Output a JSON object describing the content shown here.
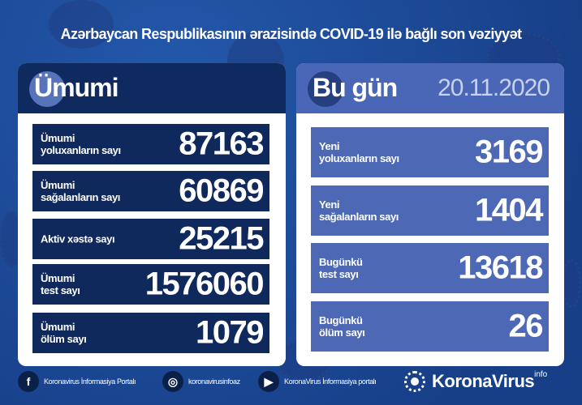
{
  "title": "Azərbaycan Respublikasının ərazisində COVID-19 ilə bağlı son vəziyyət",
  "total": {
    "heading": "Ümumi",
    "rows": [
      {
        "label1": "Ümumi",
        "label2": "yoluxanların sayı",
        "value": "87163"
      },
      {
        "label1": "Ümumi",
        "label2": "sağalanların sayı",
        "value": "60869"
      },
      {
        "label1": "Aktiv xəstə sayı",
        "label2": "",
        "value": "25215"
      },
      {
        "label1": "Ümumi",
        "label2": "test sayı",
        "value": "1576060"
      },
      {
        "label1": "Ümumi",
        "label2": "ölüm sayı",
        "value": "1079"
      }
    ]
  },
  "today": {
    "heading": "Bu gün",
    "date": "20.11.2020",
    "rows": [
      {
        "label1": "Yeni",
        "label2": "yoluxanların sayı",
        "value": "3169"
      },
      {
        "label1": "Yeni",
        "label2": "sağalanların sayı",
        "value": "1404"
      },
      {
        "label1": "Bugünkü",
        "label2": "test sayı",
        "value": "13618"
      },
      {
        "label1": "Bugünkü",
        "label2": "ölüm sayı",
        "value": "26"
      }
    ]
  },
  "footer": {
    "facebook": "Koronavirus İnformasiya Portalı",
    "instagram": "koronavirusinfoaz",
    "youtube": "KoronaVirus İnformasiya portalı",
    "brand": "KoronaVirus",
    "brand_sup": "info"
  },
  "colors": {
    "background": "#1a4c9c",
    "navy": "#0e2a5f",
    "accent": "#4a66b6",
    "date": "#c8d2ee"
  }
}
